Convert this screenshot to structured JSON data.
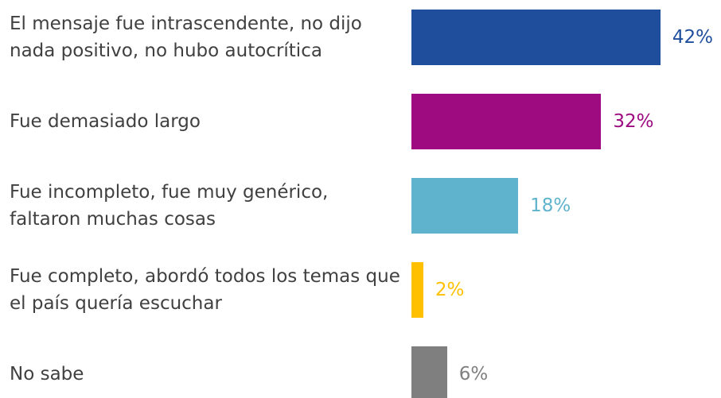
{
  "chart_data": {
    "type": "bar",
    "orientation": "horizontal",
    "categories": [
      "El mensaje fue intrascendente, no dijo nada positivo, no hubo autocrítica",
      "Fue demasiado largo",
      "Fue incompleto, fue muy genérico, faltaron muchas cosas",
      "Fue completo, abordó todos los temas que el país quería escuchar",
      "No sabe"
    ],
    "values": [
      42,
      32,
      18,
      2,
      6
    ],
    "value_labels": [
      "42%",
      "32%",
      "18%",
      "2%",
      "6%"
    ],
    "colors": [
      "#1f4e9c",
      "#9e0a7f",
      "#5fb3cc",
      "#ffc000",
      "#7f7f7f"
    ]
  }
}
